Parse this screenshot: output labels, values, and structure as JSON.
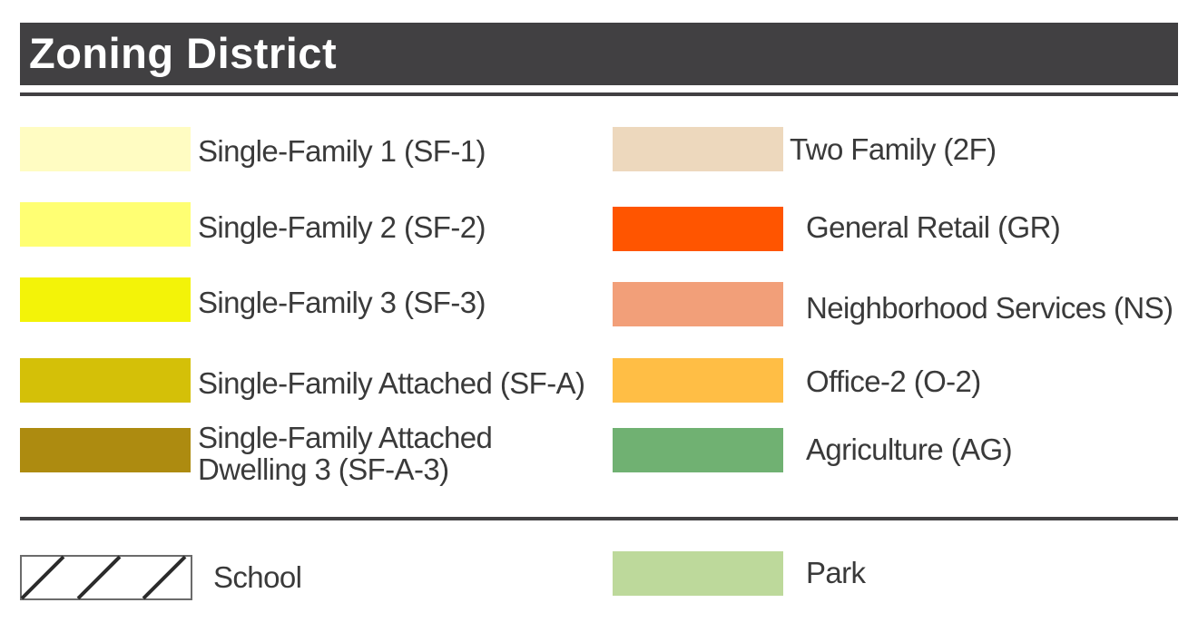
{
  "title": "Zoning District",
  "colors": {
    "header_bg": "#414042",
    "rule": "#414042",
    "hatch": "#2b2b2b"
  },
  "left_items": [
    {
      "label": "Single-Family 1 (SF-1)",
      "color": "#fffcc2"
    },
    {
      "label": "Single-Family 2 (SF-2)",
      "color": "#ffff73"
    },
    {
      "label": "Single-Family 3 (SF-3)",
      "color": "#f3f308"
    },
    {
      "label": "Single-Family Attached (SF-A)",
      "color": "#d4c008"
    },
    {
      "label": "Single-Family Attached Dwelling 3 (SF-A-3)",
      "color": "#ad8b10"
    }
  ],
  "right_items": [
    {
      "label": "Two Family (2F)",
      "color": "#edd8bd"
    },
    {
      "label": "General Retail (GR)",
      "color": "#ff5500"
    },
    {
      "label": "Neighborhood Services (NS)",
      "color": "#f29f79"
    },
    {
      "label": "Office-2 (O-2)",
      "color": "#ffbe45"
    },
    {
      "label": "Agriculture (AG)",
      "color": "#70b172"
    }
  ],
  "special_items": {
    "school": {
      "label": "School",
      "icon": "hatch-pattern"
    },
    "park": {
      "label": "Park",
      "color": "#bdd99b"
    }
  }
}
